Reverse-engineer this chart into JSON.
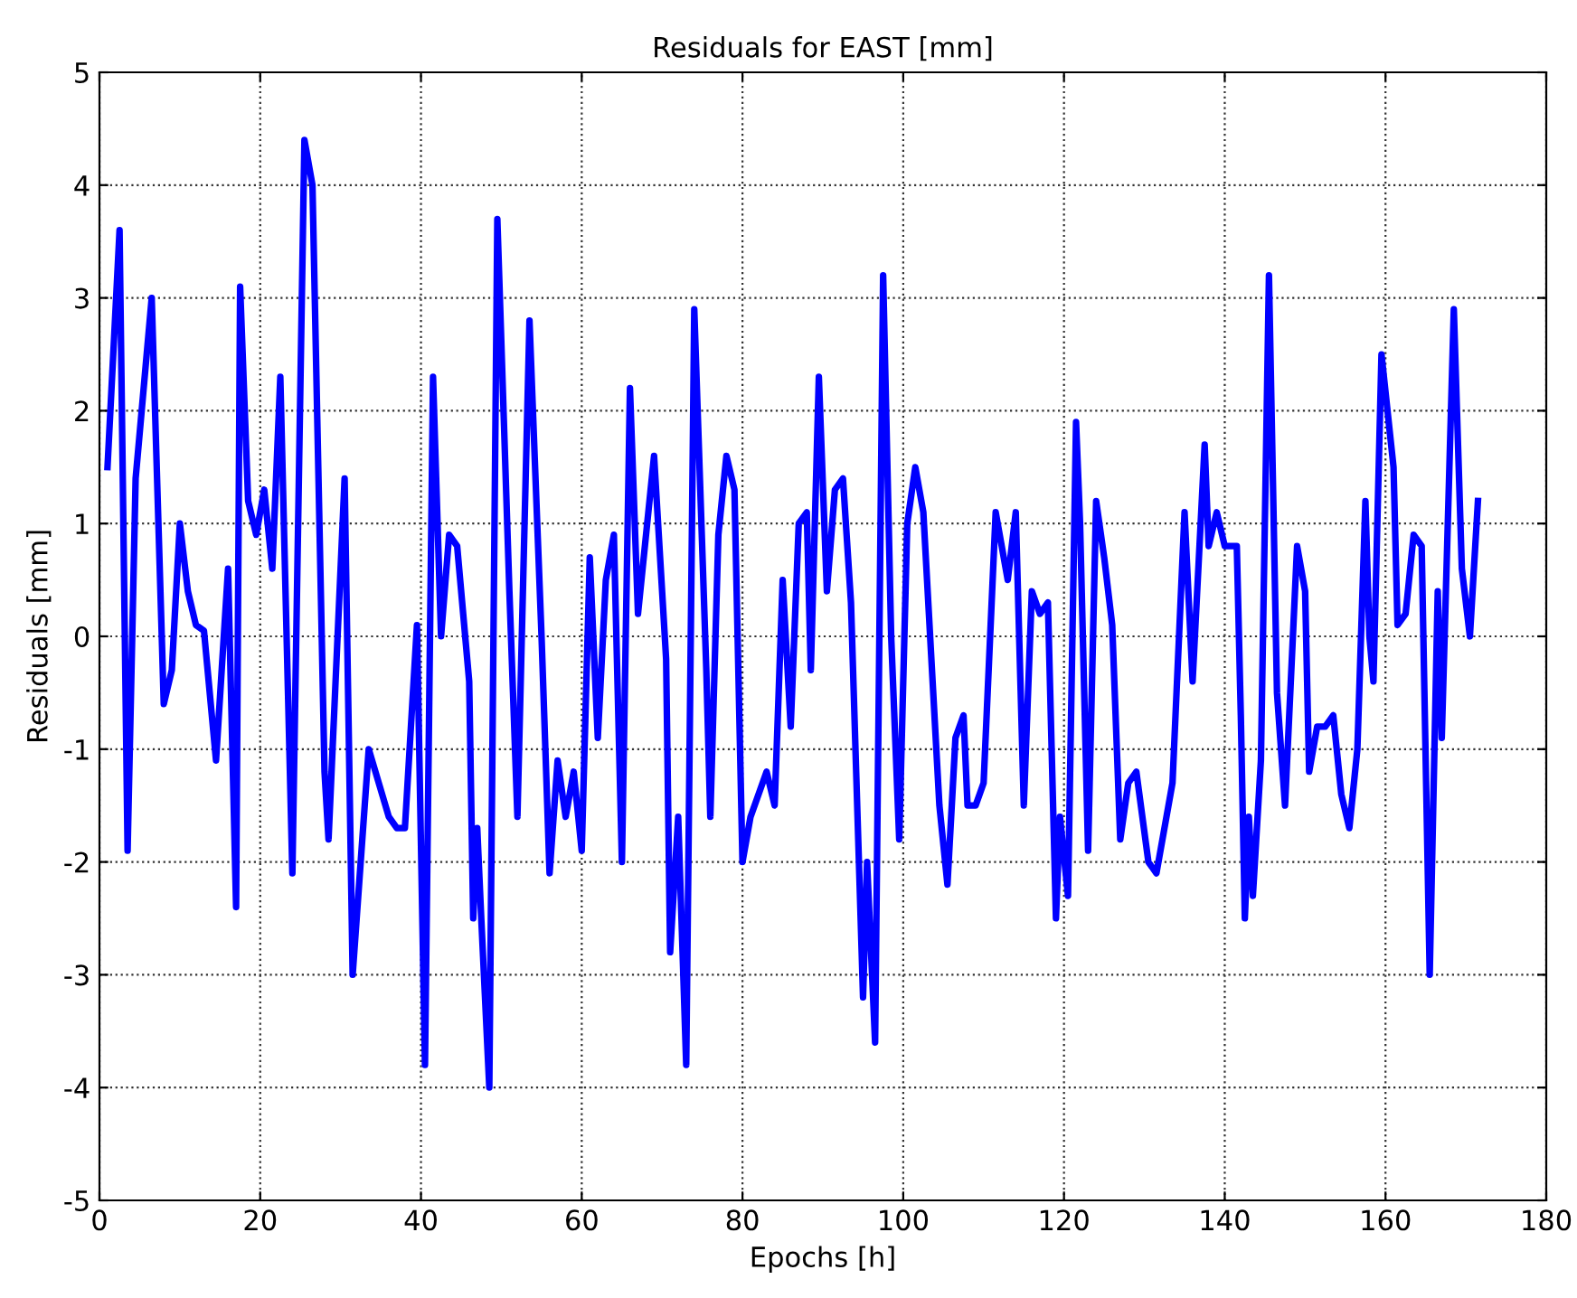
{
  "chart_data": {
    "type": "line",
    "title": "Residuals for EAST [mm]",
    "xlabel": "Epochs [h]",
    "ylabel": "Residuals [mm]",
    "xlim": [
      0,
      180
    ],
    "ylim": [
      -5,
      5
    ],
    "xticks": [
      0,
      20,
      40,
      60,
      80,
      100,
      120,
      140,
      160,
      180
    ],
    "yticks": [
      -5,
      -4,
      -3,
      -2,
      -1,
      0,
      1,
      2,
      3,
      4,
      5
    ],
    "grid": true,
    "line_style": "solid",
    "series": [
      {
        "color": "#0000ff",
        "x": [
          1,
          2.5,
          3.5,
          4.5,
          6.5,
          8,
          9,
          10,
          11,
          12,
          13,
          14.5,
          16,
          17,
          17.5,
          18.5,
          19.5,
          20.5,
          21.5,
          22.5,
          24,
          25.5,
          26.5,
          28,
          28.5,
          30.5,
          31.5,
          32.5,
          33.5,
          36,
          37,
          38,
          39.5,
          40.5,
          41.5,
          42.5,
          43.5,
          44.5,
          46,
          46.5,
          47,
          47.5,
          48.5,
          49.5,
          51,
          52,
          53.5,
          55,
          56,
          57,
          58,
          59,
          60,
          61,
          62,
          63,
          64,
          65,
          66,
          67,
          69,
          70.5,
          71,
          72,
          73,
          74,
          75.5,
          76,
          77,
          78,
          79,
          80,
          81,
          83,
          84,
          85,
          86,
          87,
          88,
          88.5,
          89.5,
          90.5,
          91.5,
          92.5,
          93.5,
          95,
          95.5,
          96.5,
          97.5,
          98.5,
          99.5,
          100.5,
          101.5,
          102.5,
          104.5,
          105.5,
          106.5,
          107.5,
          108,
          109,
          110,
          111.5,
          113,
          114,
          115,
          116,
          117,
          118,
          119,
          119.5,
          120.5,
          121.5,
          122,
          123,
          124,
          125,
          126,
          127,
          128,
          129,
          130.5,
          131.5,
          133.5,
          135,
          136,
          137.5,
          138,
          139,
          140,
          141.5,
          142,
          142.5,
          143,
          143.5,
          144.5,
          145.5,
          146.5,
          147.5,
          149,
          150,
          150.5,
          151.5,
          152.5,
          153.5,
          154.5,
          155.5,
          156.5,
          157.5,
          158,
          158.5,
          159.5,
          161,
          161.5,
          162.5,
          163.5,
          164.5,
          165.5,
          166.5,
          167,
          168.5,
          169.5,
          170.5,
          171.5
        ],
        "values": [
          1.5,
          3.6,
          -1.9,
          1.4,
          3.0,
          -0.6,
          -0.3,
          1.0,
          0.4,
          0.1,
          0.05,
          -1.1,
          0.6,
          -2.4,
          3.1,
          1.2,
          0.9,
          1.3,
          0.6,
          2.3,
          -2.1,
          4.4,
          4.0,
          -1.2,
          -1.8,
          1.4,
          -3.0,
          -2.0,
          -1.0,
          -1.6,
          -1.7,
          -1.7,
          0.1,
          -3.8,
          2.3,
          0.0,
          0.9,
          0.8,
          -0.4,
          -2.5,
          -1.7,
          -2.5,
          -4.0,
          3.7,
          0.4,
          -1.6,
          2.8,
          0.0,
          -2.1,
          -1.1,
          -1.6,
          -1.2,
          -1.9,
          0.7,
          -0.9,
          0.5,
          0.9,
          -2.0,
          2.2,
          0.2,
          1.6,
          -0.2,
          -2.8,
          -1.6,
          -3.8,
          2.9,
          -0.3,
          -1.6,
          0.9,
          1.6,
          1.3,
          -2.0,
          -1.6,
          -1.2,
          -1.5,
          0.5,
          -0.8,
          1.0,
          1.1,
          -0.3,
          2.3,
          0.4,
          1.3,
          1.4,
          0.3,
          -3.2,
          -2.0,
          -3.6,
          3.2,
          0.0,
          -1.8,
          1.0,
          1.5,
          1.1,
          -1.5,
          -2.2,
          -0.9,
          -0.7,
          -1.5,
          -1.5,
          -1.3,
          1.1,
          0.5,
          1.1,
          -1.5,
          0.4,
          0.2,
          0.3,
          -2.5,
          -1.6,
          -2.3,
          1.9,
          1.0,
          -1.9,
          1.2,
          0.7,
          0.1,
          -1.8,
          -1.3,
          -1.2,
          -2.0,
          -2.1,
          -1.3,
          1.1,
          -0.4,
          1.7,
          0.8,
          1.1,
          0.8,
          0.8,
          -0.7,
          -2.5,
          -1.6,
          -2.3,
          -1.1,
          3.2,
          -0.5,
          -1.5,
          0.8,
          0.4,
          -1.2,
          -0.8,
          -0.8,
          -0.7,
          -1.4,
          -1.7,
          -1.0,
          1.2,
          0.0,
          -0.4,
          2.5,
          1.5,
          0.1,
          0.2,
          0.9,
          0.8,
          -3.0,
          0.4,
          -0.9,
          2.9,
          0.6,
          0.0,
          1.2
        ]
      }
    ]
  }
}
